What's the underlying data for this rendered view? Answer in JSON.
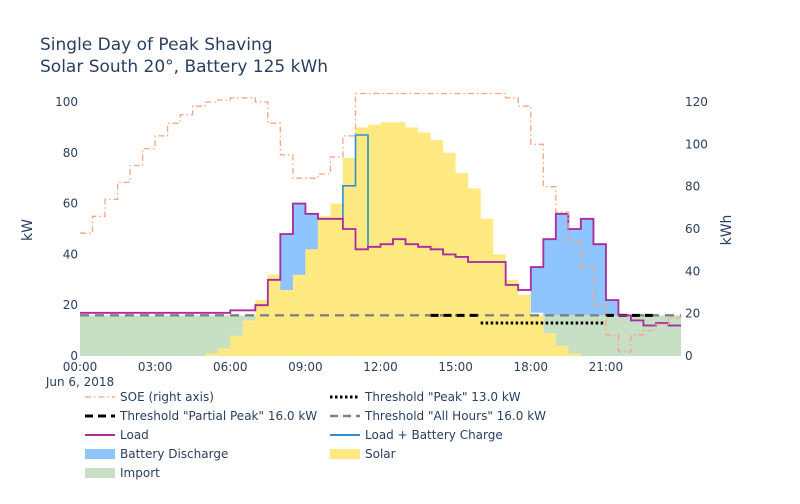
{
  "chart_data": {
    "type": "area",
    "title_lines": [
      "Single Day of Peak Shaving",
      "Solar South 20°, Battery 125 kWh"
    ],
    "xlabel": "",
    "ylabel": "kW",
    "y2label": "kWh",
    "x_ticks": [
      "00:00",
      "03:00",
      "06:00",
      "09:00",
      "12:00",
      "15:00",
      "18:00",
      "21:00"
    ],
    "x_date_label": "Jun 6, 2018",
    "x_range_hours": [
      0,
      24
    ],
    "ylim": [
      0,
      100
    ],
    "y_ticks": [
      "0",
      "20",
      "40",
      "60",
      "80",
      "100"
    ],
    "y2lim": [
      0,
      120
    ],
    "y2_ticks": [
      "0",
      "20",
      "40",
      "60",
      "80",
      "100",
      "120"
    ],
    "grid": false,
    "legend_position": "bottom",
    "colors": {
      "soe": "#f4a582",
      "load": "#b02aa0",
      "load_batt": "#2e8fd6",
      "battery_discharge": "#8ec5ff",
      "solar": "#ffe980",
      "import": "#c7dfc5",
      "threshold_peak": "#000000",
      "threshold_partial": "#000000",
      "threshold_all": "#808080"
    },
    "legend": [
      {
        "key": "soe",
        "label": "SOE (right axis)",
        "style": "dashdot"
      },
      {
        "key": "threshold_peak",
        "label": "Threshold \"Peak\" 13.0 kW",
        "style": "dot"
      },
      {
        "key": "threshold_partial",
        "label": "Threshold \"Partial Peak\" 16.0 kW",
        "style": "dash"
      },
      {
        "key": "threshold_all",
        "label": "Threshold \"All Hours\" 16.0 kW",
        "style": "dash"
      },
      {
        "key": "load",
        "label": "Load",
        "style": "line"
      },
      {
        "key": "load_batt",
        "label": "Load + Battery Charge",
        "style": "line"
      },
      {
        "key": "battery_discharge",
        "label": "Battery Discharge",
        "style": "fill"
      },
      {
        "key": "solar",
        "label": "Solar",
        "style": "fill"
      },
      {
        "key": "import",
        "label": "Import",
        "style": "fill"
      }
    ],
    "series": {
      "hours": [
        0,
        0.5,
        1,
        1.5,
        2,
        2.5,
        3,
        3.5,
        4,
        4.5,
        5,
        5.5,
        6,
        6.5,
        7,
        7.5,
        8,
        8.5,
        9,
        9.5,
        10,
        10.5,
        11,
        11.5,
        12,
        12.5,
        13,
        13.5,
        14,
        14.5,
        15,
        15.5,
        16,
        16.5,
        17,
        17.5,
        18,
        18.5,
        19,
        19.5,
        20,
        20.5,
        21,
        21.5,
        22,
        22.5,
        23,
        23.5
      ],
      "load": [
        17,
        17,
        17,
        17,
        17,
        17,
        17,
        17,
        17,
        17,
        17,
        17,
        18,
        18,
        20,
        30,
        48,
        60,
        56,
        54,
        54,
        50,
        42,
        43,
        44,
        46,
        44,
        43,
        42,
        40,
        39,
        37,
        37,
        37,
        28,
        26,
        35,
        46,
        56,
        50,
        54,
        44,
        22,
        16,
        14,
        12,
        13,
        12
      ],
      "load_batt": [
        17,
        17,
        17,
        17,
        17,
        17,
        17,
        17,
        17,
        17,
        17,
        17,
        18,
        18,
        20,
        30,
        48,
        60,
        56,
        54,
        54,
        67,
        87,
        43,
        44,
        46,
        44,
        43,
        42,
        40,
        39,
        37,
        37,
        37,
        28,
        26,
        35,
        46,
        56,
        50,
        54,
        44,
        22,
        16,
        14,
        12,
        13,
        12
      ],
      "solar": [
        0,
        0,
        0,
        0,
        0,
        0,
        0,
        0,
        0,
        0,
        1,
        3,
        8,
        14,
        22,
        32,
        42,
        50,
        56,
        55,
        60,
        78,
        90,
        91,
        92,
        92,
        90,
        88,
        85,
        80,
        72,
        66,
        54,
        40,
        30,
        24,
        16,
        9,
        4,
        1,
        0,
        0,
        0,
        0,
        0,
        0,
        0,
        0
      ],
      "import": [
        16,
        16,
        16,
        16,
        16,
        16,
        16,
        16,
        16,
        16,
        16,
        16,
        16,
        16,
        16,
        16,
        16,
        16,
        16,
        16,
        16,
        16,
        16,
        0,
        0,
        0,
        0,
        0,
        0,
        0,
        0,
        0,
        0,
        0,
        0,
        0,
        0,
        16,
        16,
        16,
        16,
        16,
        16,
        16,
        16,
        16,
        16,
        16
      ],
      "battery_discharge": [
        0,
        0,
        0,
        0,
        0,
        0,
        0,
        0,
        0,
        0,
        0,
        0,
        0,
        0,
        0,
        0,
        22,
        28,
        14,
        0,
        0,
        0,
        0,
        0,
        0,
        0,
        0,
        0,
        0,
        0,
        0,
        0,
        0,
        0,
        0,
        0,
        18,
        30,
        40,
        34,
        38,
        28,
        6,
        0,
        0,
        0,
        0,
        0
      ],
      "soe_kwh": [
        58,
        66,
        74,
        82,
        90,
        98,
        104,
        110,
        114,
        118,
        120,
        121,
        122,
        122,
        120,
        110,
        95,
        84,
        84,
        86,
        94,
        104,
        124,
        124,
        124,
        124,
        124,
        124,
        124,
        124,
        124,
        124,
        124,
        124,
        122,
        118,
        100,
        80,
        68,
        54,
        42,
        24,
        10,
        2,
        10,
        12,
        15,
        18
      ]
    },
    "thresholds": [
      {
        "name": "All Hours",
        "value": 16.0,
        "start_hour": 0,
        "end_hour": 24
      },
      {
        "name": "Partial Peak",
        "value": 16.0,
        "start_hour": 14,
        "end_hour": 16
      },
      {
        "name": "Partial Peak",
        "value": 16.0,
        "start_hour": 21,
        "end_hour": 23
      },
      {
        "name": "Peak",
        "value": 13.0,
        "start_hour": 16,
        "end_hour": 21
      }
    ]
  }
}
